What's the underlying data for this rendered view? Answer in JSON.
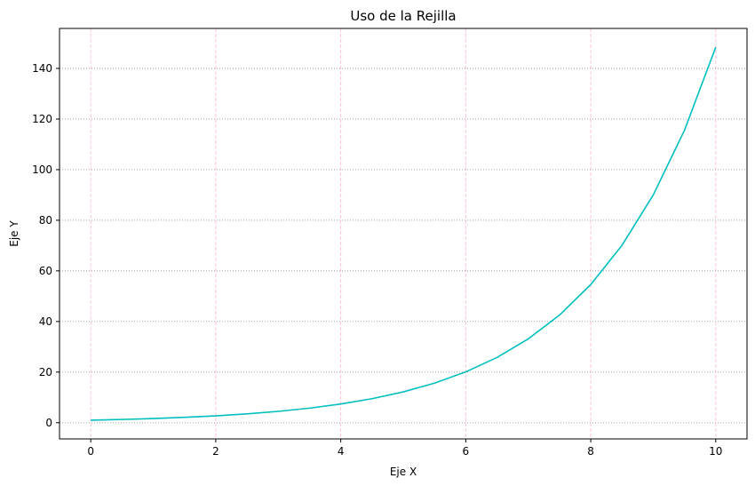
{
  "chart_data": {
    "type": "line",
    "title": "Uso de la Rejilla",
    "xlabel": "Eje X",
    "ylabel": "Eje Y",
    "xlim": [
      -0.5,
      10.5
    ],
    "ylim": [
      -6.4,
      155.8
    ],
    "xticks": [
      0,
      2,
      4,
      6,
      8,
      10
    ],
    "yticks": [
      0,
      20,
      40,
      60,
      80,
      100,
      120,
      140
    ],
    "xtick_labels": [
      "0",
      "2",
      "4",
      "6",
      "8",
      "10"
    ],
    "ytick_labels": [
      "0",
      "20",
      "40",
      "60",
      "80",
      "100",
      "120",
      "140"
    ],
    "grid": {
      "x": {
        "on": true,
        "style": "dashed",
        "color": "#ffc0cb"
      },
      "y": {
        "on": true,
        "style": "dotted",
        "color": "#999999"
      }
    },
    "series": [
      {
        "color": "#00bfbf",
        "x": [
          0,
          0.5,
          1,
          1.5,
          2,
          2.5,
          3,
          3.5,
          4,
          4.5,
          5,
          5.5,
          6,
          6.5,
          7,
          7.5,
          8,
          8.5,
          9,
          9.5,
          10
        ],
        "y": [
          1.0,
          1.28,
          1.65,
          2.12,
          2.72,
          3.49,
          4.48,
          5.75,
          7.39,
          9.49,
          12.18,
          15.64,
          20.09,
          25.79,
          33.12,
          42.52,
          54.6,
          70.1,
          90.0,
          115.58,
          148.4
        ]
      }
    ]
  }
}
